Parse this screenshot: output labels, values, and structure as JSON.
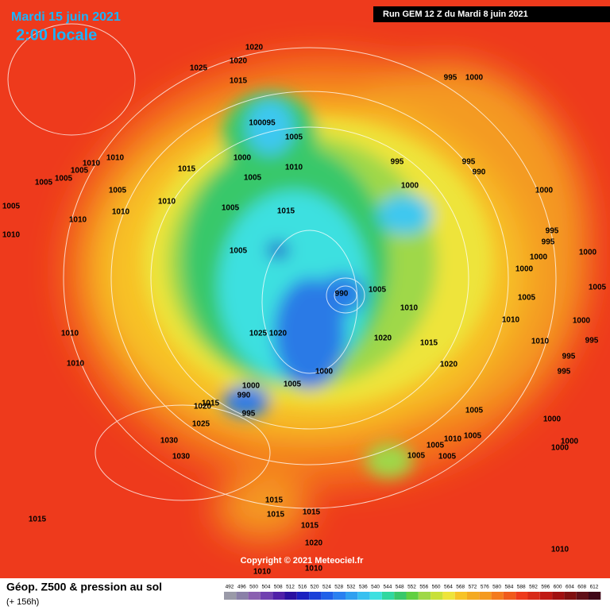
{
  "header": {
    "date": "Mardi 15 juin 2021",
    "time": "2:00 locale",
    "run": "Run GEM 12 Z du Mardi 8 juin 2021"
  },
  "footer": {
    "title": "Géop. Z500 & pression au sol",
    "lead": "(+ 156h)",
    "copyright": "Copyright © 2021 Meteociel.fr"
  },
  "scale": [
    492,
    496,
    500,
    504,
    508,
    512,
    516,
    520,
    524,
    528,
    532,
    536,
    540,
    544,
    548,
    552,
    556,
    560,
    564,
    568,
    572,
    576,
    580,
    584,
    588,
    592,
    596,
    600,
    604,
    608,
    612
  ],
  "pressure_labels": [
    "1025",
    "1020",
    "1020",
    "1015",
    "995",
    "1000",
    "100095",
    "1005",
    "1010",
    "1010",
    "1005",
    "1005",
    "1005",
    "1015",
    "1000",
    "1010",
    "995",
    "995",
    "990",
    "1005",
    "1000",
    "1000",
    "1005",
    "1005",
    "1010",
    "1010",
    "1010",
    "1005",
    "1015",
    "995",
    "1010",
    "995",
    "1000",
    "1000",
    "1005",
    "1000",
    "990",
    "1005",
    "1005",
    "1005",
    "1010",
    "1010",
    "1000",
    "1010",
    "1020",
    "1015",
    "1010",
    "995",
    "1025",
    "1020",
    "995",
    "1010",
    "1020",
    "1000",
    "995",
    "1005",
    "1000",
    "990",
    "1015",
    "1020",
    "995",
    "1005",
    "1000",
    "1025",
    "1010",
    "1005",
    "1000",
    "1000",
    "1030",
    "1005",
    "1005",
    "1005",
    "1030",
    "1015",
    "1015",
    "1015",
    "1015",
    "1015",
    "1020",
    "1010",
    "1010",
    "1010"
  ]
}
